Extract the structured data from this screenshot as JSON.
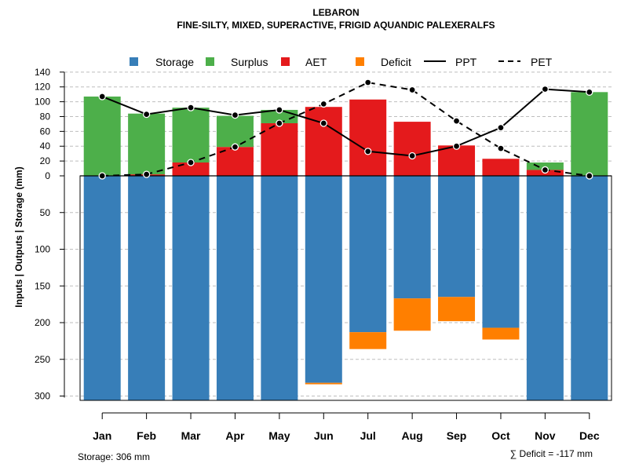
{
  "chart_data": {
    "type": "bar",
    "title": "LEBARON",
    "subtitle": "FINE-SILTY, MIXED, SUPERACTIVE, FRIGID AQUANDIC PALEXERALFS",
    "ylabel": "Inputs | Outputs | Storage    (mm)",
    "ylim": [
      -306,
      140
    ],
    "categories": [
      "Jan",
      "Feb",
      "Mar",
      "Apr",
      "May",
      "Jun",
      "Jul",
      "Aug",
      "Sep",
      "Oct",
      "Nov",
      "Dec"
    ],
    "upper_ticks": [
      "0",
      "20",
      "40",
      "60",
      "80",
      "100",
      "120",
      "140"
    ],
    "upper_tick_values": [
      0,
      20,
      40,
      60,
      80,
      100,
      120,
      140
    ],
    "lower_ticks": [
      "50",
      "100",
      "150",
      "200",
      "250",
      "300"
    ],
    "lower_tick_values": [
      50,
      100,
      150,
      200,
      250,
      300
    ],
    "legend": {
      "storage": "Storage",
      "surplus": "Surplus",
      "aet": "AET",
      "deficit": "Deficit",
      "ppt": "PPT",
      "pet": "PET"
    },
    "colors": {
      "storage": "#377EB8",
      "surplus": "#4DAF4A",
      "aet": "#E41A1C",
      "deficit": "#FF7F00",
      "grid": "#BEBEBE",
      "line": "#000000"
    },
    "series": [
      {
        "name": "AET",
        "values": [
          0,
          2,
          18,
          39,
          71,
          93,
          103,
          73,
          41,
          23,
          8,
          0
        ]
      },
      {
        "name": "Surplus",
        "values": [
          107,
          82,
          74,
          42,
          18,
          0,
          0,
          0,
          0,
          0,
          10,
          113
        ]
      },
      {
        "name": "Storage",
        "values": [
          306,
          306,
          306,
          306,
          306,
          282,
          213,
          167,
          165,
          207,
          306,
          306
        ]
      },
      {
        "name": "Deficit",
        "values": [
          0,
          0,
          0,
          0,
          0,
          2,
          23,
          44,
          33,
          16,
          0,
          0
        ]
      },
      {
        "name": "PPT",
        "values": [
          107,
          83,
          92,
          82,
          89,
          71,
          33,
          27,
          40,
          65,
          117,
          113
        ]
      },
      {
        "name": "PET",
        "values": [
          0,
          2,
          18,
          39,
          71,
          97,
          126,
          116,
          74,
          37,
          8,
          0
        ]
      }
    ],
    "storage_label": "Storage: 306 mm",
    "deficit_label": "∑ Deficit = -117 mm"
  }
}
